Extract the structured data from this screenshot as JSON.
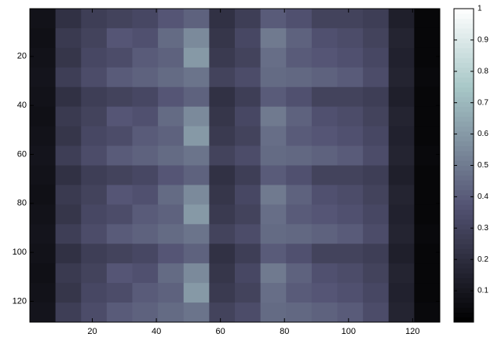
{
  "chart_data": {
    "type": "heatmap",
    "colormap": "bone",
    "xlim": [
      0.5,
      128.5
    ],
    "ylim": [
      0.5,
      128.5
    ],
    "y_reversed": true,
    "xticks": [
      20,
      40,
      60,
      80,
      100,
      120
    ],
    "yticks": [
      20,
      40,
      60,
      80,
      100,
      120
    ],
    "clim": [
      0,
      1
    ],
    "cticks": [
      0.1,
      0.2,
      0.3,
      0.4,
      0.5,
      0.6,
      0.7,
      0.8,
      0.9,
      1
    ],
    "z": [
      [
        0.08,
        0.22,
        0.28,
        0.3,
        0.32,
        0.38,
        0.42,
        0.22,
        0.28,
        0.4,
        0.36,
        0.3,
        0.3,
        0.28,
        0.14,
        0.03
      ],
      [
        0.07,
        0.26,
        0.3,
        0.38,
        0.36,
        0.45,
        0.55,
        0.24,
        0.32,
        0.5,
        0.42,
        0.36,
        0.34,
        0.3,
        0.16,
        0.03
      ],
      [
        0.08,
        0.24,
        0.32,
        0.34,
        0.4,
        0.42,
        0.6,
        0.26,
        0.3,
        0.46,
        0.4,
        0.38,
        0.36,
        0.32,
        0.15,
        0.03
      ],
      [
        0.09,
        0.28,
        0.34,
        0.4,
        0.42,
        0.45,
        0.48,
        0.3,
        0.34,
        0.45,
        0.44,
        0.42,
        0.4,
        0.34,
        0.16,
        0.04
      ],
      [
        0.08,
        0.22,
        0.28,
        0.3,
        0.32,
        0.38,
        0.42,
        0.22,
        0.28,
        0.4,
        0.36,
        0.3,
        0.3,
        0.28,
        0.14,
        0.03
      ],
      [
        0.07,
        0.26,
        0.3,
        0.38,
        0.36,
        0.45,
        0.55,
        0.24,
        0.32,
        0.5,
        0.42,
        0.36,
        0.34,
        0.3,
        0.16,
        0.03
      ],
      [
        0.08,
        0.24,
        0.32,
        0.34,
        0.4,
        0.42,
        0.6,
        0.26,
        0.3,
        0.46,
        0.4,
        0.38,
        0.36,
        0.32,
        0.15,
        0.03
      ],
      [
        0.09,
        0.28,
        0.34,
        0.4,
        0.42,
        0.45,
        0.48,
        0.3,
        0.34,
        0.45,
        0.44,
        0.42,
        0.4,
        0.34,
        0.16,
        0.04
      ],
      [
        0.08,
        0.22,
        0.28,
        0.3,
        0.32,
        0.38,
        0.42,
        0.22,
        0.28,
        0.4,
        0.36,
        0.3,
        0.3,
        0.28,
        0.14,
        0.03
      ],
      [
        0.07,
        0.26,
        0.3,
        0.38,
        0.36,
        0.45,
        0.55,
        0.24,
        0.32,
        0.5,
        0.42,
        0.36,
        0.34,
        0.3,
        0.16,
        0.03
      ],
      [
        0.08,
        0.24,
        0.32,
        0.34,
        0.4,
        0.42,
        0.6,
        0.26,
        0.3,
        0.46,
        0.4,
        0.38,
        0.36,
        0.32,
        0.15,
        0.03
      ],
      [
        0.09,
        0.28,
        0.34,
        0.4,
        0.42,
        0.45,
        0.48,
        0.3,
        0.34,
        0.45,
        0.44,
        0.42,
        0.4,
        0.34,
        0.16,
        0.04
      ],
      [
        0.08,
        0.22,
        0.28,
        0.3,
        0.32,
        0.38,
        0.42,
        0.22,
        0.28,
        0.4,
        0.36,
        0.3,
        0.3,
        0.28,
        0.14,
        0.03
      ],
      [
        0.07,
        0.26,
        0.3,
        0.38,
        0.36,
        0.45,
        0.55,
        0.24,
        0.32,
        0.5,
        0.42,
        0.36,
        0.34,
        0.3,
        0.16,
        0.03
      ],
      [
        0.08,
        0.24,
        0.32,
        0.34,
        0.4,
        0.42,
        0.6,
        0.26,
        0.3,
        0.46,
        0.4,
        0.38,
        0.36,
        0.32,
        0.15,
        0.03
      ],
      [
        0.09,
        0.28,
        0.34,
        0.4,
        0.42,
        0.45,
        0.48,
        0.3,
        0.34,
        0.45,
        0.44,
        0.42,
        0.4,
        0.34,
        0.16,
        0.04
      ]
    ]
  }
}
